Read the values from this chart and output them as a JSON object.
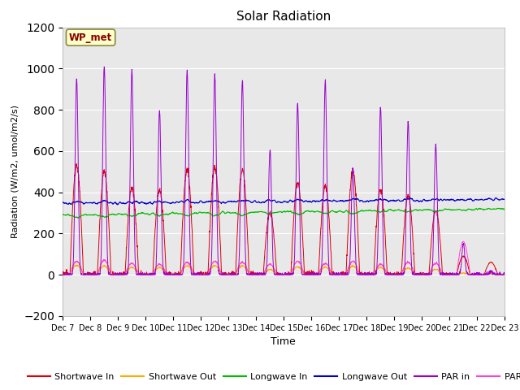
{
  "title": "Solar Radiation",
  "xlabel": "Time",
  "ylabel": "Radiation (W/m2, umol/m2/s)",
  "ylim": [
    -200,
    1200
  ],
  "yticks": [
    -200,
    0,
    200,
    400,
    600,
    800,
    1000,
    1200
  ],
  "annotation": "WP_met",
  "bg_color": "#e8e8e8",
  "fig_color": "#ffffff",
  "series_colors": {
    "sw_in": "#dd0000",
    "sw_out": "#ffaa00",
    "lw_in": "#00bb00",
    "lw_out": "#0000cc",
    "par_in": "#9900cc",
    "par_out": "#ff44cc"
  },
  "legend_labels": [
    "Shortwave In",
    "Shortwave Out",
    "Longwave In",
    "Longwave Out",
    "PAR in",
    "PAR out"
  ],
  "n_days": 16,
  "start_day": 7,
  "sw_in_peaks": [
    530,
    500,
    420,
    410,
    510,
    520,
    510,
    300,
    450,
    430,
    500,
    410,
    380,
    310,
    90,
    60
  ],
  "par_in_peaks": [
    950,
    1010,
    990,
    795,
    990,
    975,
    940,
    605,
    830,
    940,
    520,
    810,
    740,
    630,
    150,
    20
  ],
  "par_out_peaks": [
    65,
    70,
    55,
    50,
    60,
    65,
    60,
    50,
    65,
    55,
    65,
    50,
    60,
    55,
    160,
    10
  ]
}
